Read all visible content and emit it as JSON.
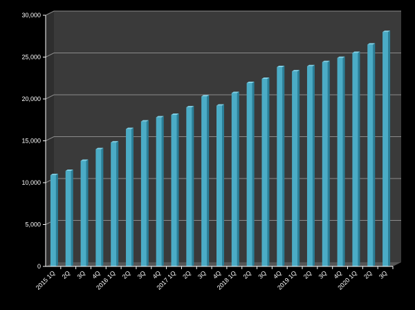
{
  "chart_data": {
    "type": "bar",
    "title": "",
    "xlabel": "",
    "ylabel": "",
    "ylim": [
      0,
      30000
    ],
    "yticks": [
      0,
      5000,
      10000,
      15000,
      20000,
      25000,
      30000
    ],
    "ytick_labels": [
      "0",
      "5,000",
      "10,000",
      "15,000",
      "20,000",
      "25,000",
      "30,000"
    ],
    "grid": true,
    "legend": "none",
    "categories": [
      "2015 1Q",
      "2Q",
      "3Q",
      "4Q",
      "2016 1Q",
      "2Q",
      "3Q",
      "4Q",
      "2017 1Q",
      "2Q",
      "3Q",
      "4Q",
      "2018 1Q",
      "2Q",
      "3Q",
      "4Q",
      "2019 1Q",
      "2Q",
      "3Q",
      "4Q",
      "2020 1Q",
      "2Q",
      "3Q"
    ],
    "values": [
      10900,
      11400,
      12600,
      14000,
      14800,
      16400,
      17300,
      17800,
      18100,
      19000,
      20300,
      19200,
      20700,
      21900,
      22400,
      23800,
      23300,
      23900,
      24400,
      24900,
      25500,
      26500,
      28000
    ],
    "colors": {
      "background": "#000000",
      "plot": "#3a3a3a",
      "bar": "#4bacc6",
      "bar_light": "#7fd0e6",
      "bar_dark": "#2a7f98",
      "grid": "#8c8c8c",
      "text": "#ffffff"
    }
  }
}
